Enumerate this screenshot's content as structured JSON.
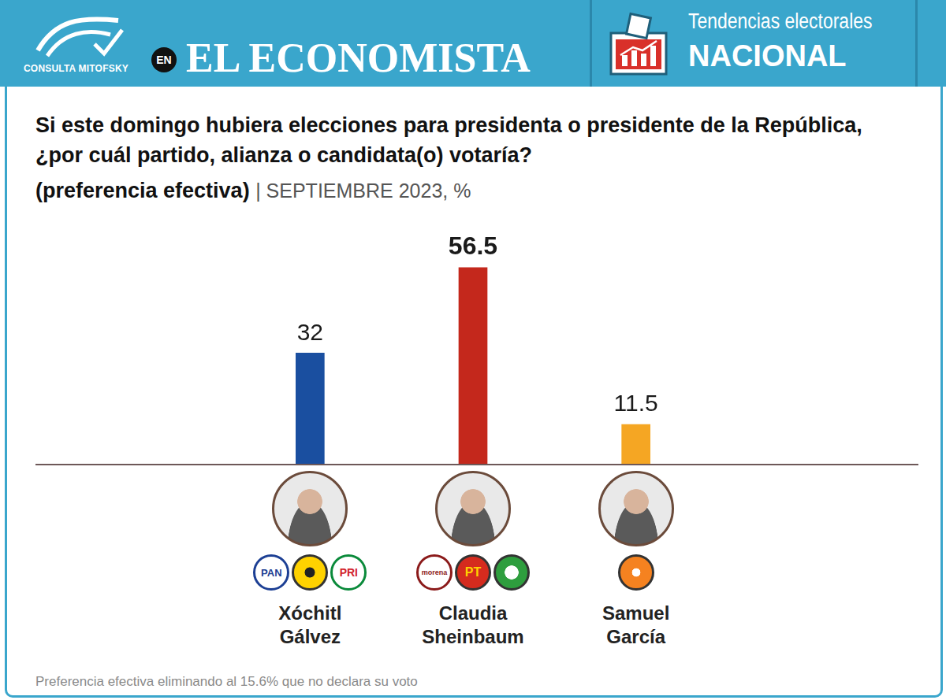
{
  "header": {
    "brand": "CONSULTA MITOFSKY",
    "connector": "EN",
    "publication": "EL ECONOMISTA",
    "section": "Tendencias electorales",
    "section_strong": "NACIONAL"
  },
  "chart_data": {
    "type": "bar",
    "title": "Si este domingo hubiera elecciones para presidenta o presidente de la República, ¿por cuál partido, alianza o candidata(o) votaría?",
    "subtitle": "(preferencia efectiva)",
    "subtitle_note": "| SEPTIEMBRE 2023, %",
    "categories": [
      "Xóchitl Gálvez",
      "Claudia Sheinbaum",
      "Samuel García"
    ],
    "values": [
      32,
      56.5,
      11.5
    ],
    "colors": [
      "#1a4fa0",
      "#c4281c",
      "#f5a623"
    ],
    "party_logos": [
      [
        "PAN",
        "PRI"
      ],
      [
        "morena",
        "PT"
      ],
      []
    ],
    "ylim": [
      0,
      70
    ],
    "grid": false,
    "data_labels": true,
    "tick_labels": false
  },
  "footnote": "Preferencia efectiva eliminando al 15.6% que no declara su voto"
}
